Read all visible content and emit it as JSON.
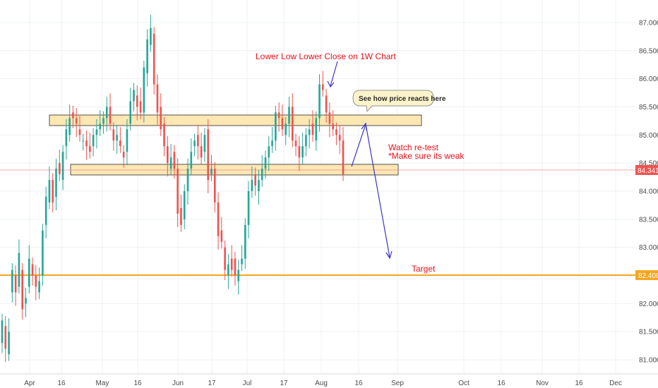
{
  "colors": {
    "up": "#26a69a",
    "down": "#ef5350",
    "zone_fill": "#fde7b3",
    "zone_stroke": "#2a2a2a",
    "target_line": "#f5a623",
    "price_line": "#f28b8b",
    "arrow": "#3b35c9",
    "annotation_text": "#e8121a",
    "grid": "#eef0f3"
  },
  "chart_data": {
    "type": "candlestick",
    "ylim": [
      80.75,
      87.3
    ],
    "y_ticks": [
      "81.000",
      "81.500",
      "82.000",
      "82.500",
      "83.000",
      "83.500",
      "84.000",
      "84.500",
      "85.000",
      "85.500",
      "86.000",
      "86.500",
      "87.000"
    ],
    "x_ticks": [
      "Apr",
      "16",
      "May",
      "16",
      "Jun",
      "17",
      "Jul",
      "17",
      "Aug",
      "16",
      "Sep",
      "Oct",
      "16",
      "Nov",
      "16",
      "Dec"
    ],
    "current_price": "84.341",
    "target_price": "82.400",
    "closes": [
      81.7,
      81.2,
      81.5,
      82.6,
      82.2,
      82.9,
      81.9,
      82.1,
      82.8,
      82.5,
      82.3,
      82.4,
      83.3,
      83.9,
      84.2,
      83.8,
      84.4,
      84.3,
      84.7,
      85.1,
      85.3,
      85.3,
      85.2,
      85.0,
      84.9,
      84.8,
      84.7,
      85.0,
      85.1,
      85.2,
      85.3,
      85.5,
      85.2,
      84.9,
      85.0,
      84.8,
      84.6,
      85.1,
      85.6,
      85.8,
      85.5,
      85.4,
      86.2,
      86.7,
      86.9,
      85.9,
      85.4,
      85.1,
      84.8,
      84.5,
      84.6,
      84.4,
      83.6,
      83.4,
      84.0,
      84.4,
      84.7,
      84.9,
      84.8,
      84.6,
      85.0,
      84.2,
      84.4,
      83.8,
      83.2,
      83.1,
      82.6,
      82.7,
      82.6,
      82.5,
      82.6,
      82.8,
      83.4,
      84.0,
      84.2,
      84.1,
      84.2,
      84.4,
      84.6,
      84.8,
      84.9,
      85.4,
      85.3,
      85.1,
      85.2,
      85.5,
      84.9,
      84.8,
      84.6,
      84.8,
      85.0,
      85.1,
      85.0,
      85.3,
      85.9,
      85.8,
      85.4,
      85.2,
      85.1,
      85.0,
      84.9,
      84.3
    ],
    "opens": [
      81.3,
      81.6,
      81.1,
      82.2,
      82.5,
      82.3,
      82.6,
      82.0,
      82.3,
      82.7,
      82.5,
      82.2,
      82.5,
      83.4,
      83.8,
      84.2,
      83.9,
      84.5,
      84.2,
      84.8,
      85.0,
      85.4,
      85.3,
      85.1,
      84.9,
      84.9,
      84.8,
      84.8,
      85.0,
      85.1,
      85.2,
      85.3,
      85.5,
      85.1,
      84.9,
      84.9,
      84.7,
      84.7,
      85.2,
      85.6,
      85.7,
      85.6,
      85.4,
      86.1,
      86.6,
      86.8,
      85.9,
      85.5,
      85.2,
      84.8,
      84.4,
      84.7,
      84.4,
      83.7,
      83.5,
      84.0,
      84.4,
      84.8,
      85.0,
      84.8,
      84.7,
      85.1,
      84.3,
      84.4,
      83.8,
      83.3,
      83.0,
      82.5,
      82.8,
      82.8,
      82.4,
      82.7,
      82.8,
      83.4,
      84.0,
      84.3,
      84.0,
      84.2,
      84.4,
      84.6,
      84.8,
      84.9,
      85.4,
      85.3,
      85.0,
      85.2,
      85.5,
      84.9,
      84.8,
      84.6,
      84.8,
      85.0,
      85.2,
      84.9,
      85.3,
      85.9,
      85.7,
      85.4,
      85.2,
      85.1,
      85.0,
      84.9
    ]
  },
  "annotations": {
    "lower_low": "Lower Low Lower Close on 1W Chart",
    "bubble": "See how price reacts here",
    "watch_line1": "Watch re-test",
    "watch_line2": "*Make sure its weak",
    "target": "Target"
  }
}
